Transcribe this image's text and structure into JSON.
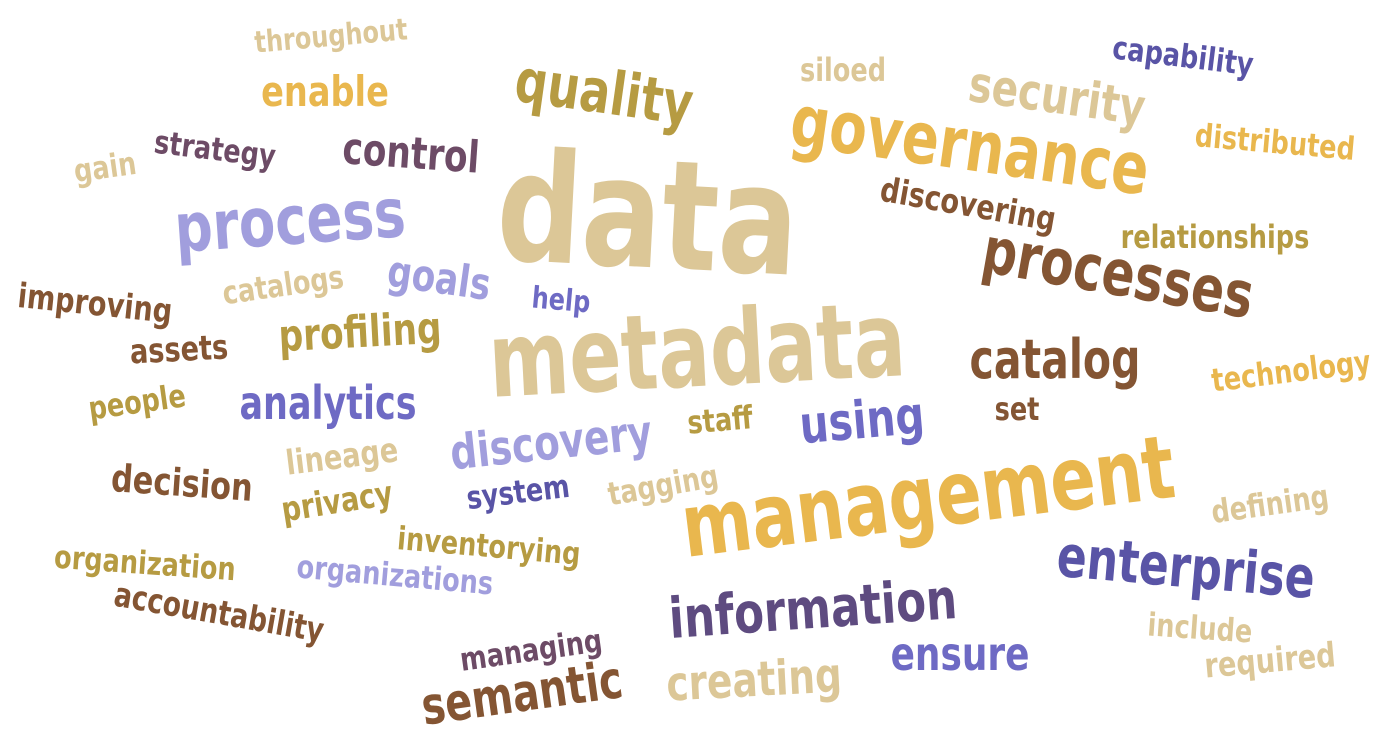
{
  "palette": {
    "tan": "#DCC797",
    "gold": "#E9B74E",
    "olive": "#B69B42",
    "brown": "#845533",
    "plum": "#6D4B66",
    "lavender": "#A19EDD",
    "indigo": "#5954A6"
  },
  "words": {
    "data": {
      "text": "data",
      "color": "#DCC797"
    },
    "metadata": {
      "text": "metadata",
      "color": "#DCC797"
    },
    "management": {
      "text": "management",
      "color": "#E9B74E"
    },
    "governance": {
      "text": "governance",
      "color": "#E9B74E"
    },
    "processes": {
      "text": "processes",
      "color": "#845533"
    },
    "enterprise": {
      "text": "enterprise",
      "color": "#5954A6"
    },
    "information": {
      "text": "information",
      "color": "#5E4B80"
    },
    "process": {
      "text": "process",
      "color": "#A19EDD"
    },
    "quality": {
      "text": "quality",
      "color": "#B69B42"
    },
    "security": {
      "text": "security",
      "color": "#DCC797"
    },
    "catalog": {
      "text": "catalog",
      "color": "#845533"
    },
    "discovery": {
      "text": "discovery",
      "color": "#A19EDD"
    },
    "using": {
      "text": "using",
      "color": "#6E6AC4"
    },
    "semantic": {
      "text": "semantic",
      "color": "#845533"
    },
    "creating": {
      "text": "creating",
      "color": "#DCC797"
    },
    "ensure": {
      "text": "ensure",
      "color": "#6E6AC4"
    },
    "analytics": {
      "text": "analytics",
      "color": "#6E6AC4"
    },
    "profiling": {
      "text": "profiling",
      "color": "#B69B42"
    },
    "goals": {
      "text": "goals",
      "color": "#A19EDD"
    },
    "control": {
      "text": "control",
      "color": "#6D4B66"
    },
    "enable": {
      "text": "enable",
      "color": "#E9B74E"
    },
    "capability": {
      "text": "capability",
      "color": "#5954A6"
    },
    "distributed": {
      "text": "distributed",
      "color": "#E9B74E"
    },
    "siloed": {
      "text": "siloed",
      "color": "#DCC797"
    },
    "throughout": {
      "text": "throughout",
      "color": "#DCC797"
    },
    "strategy": {
      "text": "strategy",
      "color": "#6D4B66"
    },
    "gain": {
      "text": "gain",
      "color": "#DCC797"
    },
    "discovering": {
      "text": "discovering",
      "color": "#845533"
    },
    "relationships": {
      "text": "relationships",
      "color": "#B69B42"
    },
    "catalogs": {
      "text": "catalogs",
      "color": "#DCC797"
    },
    "improving": {
      "text": "improving",
      "color": "#845533"
    },
    "help": {
      "text": "help",
      "color": "#6E6AC4"
    },
    "assets": {
      "text": "assets",
      "color": "#845533"
    },
    "people": {
      "text": "people",
      "color": "#B69B42"
    },
    "technology": {
      "text": "technology",
      "color": "#E9B74E"
    },
    "set": {
      "text": "set",
      "color": "#845533"
    },
    "staff": {
      "text": "staff",
      "color": "#B69B42"
    },
    "lineage": {
      "text": "lineage",
      "color": "#DCC797"
    },
    "decision": {
      "text": "decision",
      "color": "#845533"
    },
    "privacy": {
      "text": "privacy",
      "color": "#B69B42"
    },
    "system": {
      "text": "system",
      "color": "#5954A6"
    },
    "tagging": {
      "text": "tagging",
      "color": "#DCC797"
    },
    "defining": {
      "text": "defining",
      "color": "#DCC797"
    },
    "organization": {
      "text": "organization",
      "color": "#B69B42"
    },
    "inventorying": {
      "text": "inventorying",
      "color": "#B69B42"
    },
    "organizations": {
      "text": "organizations",
      "color": "#A19EDD"
    },
    "accountability": {
      "text": "accountability",
      "color": "#845533"
    },
    "managing": {
      "text": "managing",
      "color": "#6D4B66"
    },
    "include": {
      "text": "include",
      "color": "#DCC797"
    },
    "required": {
      "text": "required",
      "color": "#DCC797"
    }
  }
}
